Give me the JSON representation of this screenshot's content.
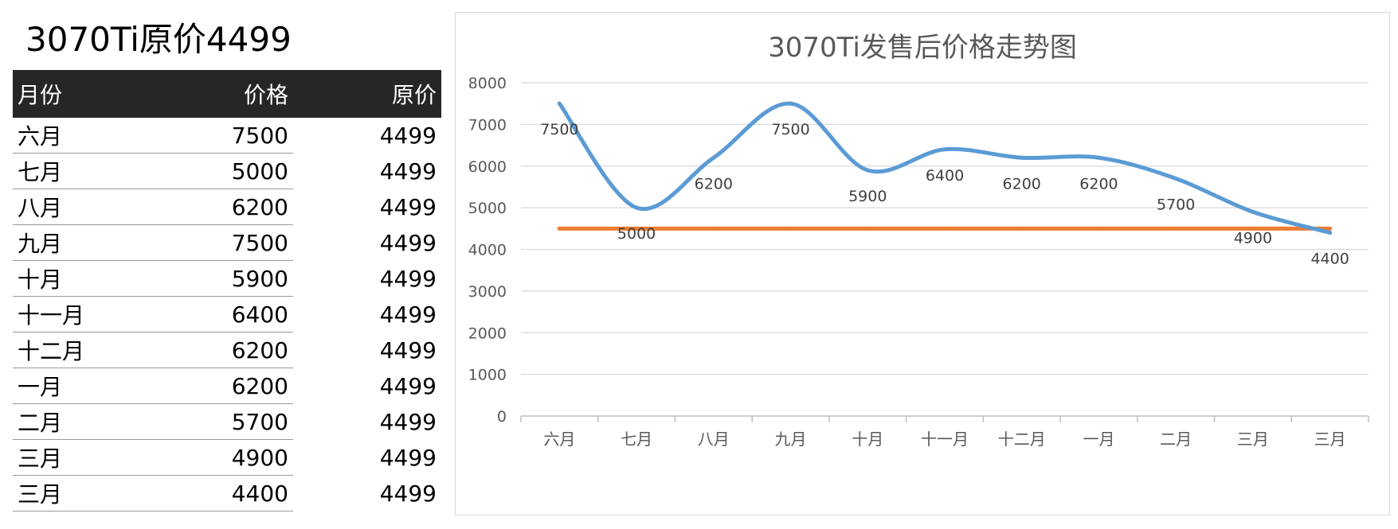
{
  "sheet": {
    "title": "3070Ti原价4499",
    "headers": {
      "month": "月份",
      "price": "价格",
      "original": "原价"
    },
    "rows": [
      {
        "month": "六月",
        "price": "7500",
        "original": "4499"
      },
      {
        "month": "七月",
        "price": "5000",
        "original": "4499"
      },
      {
        "month": "八月",
        "price": "6200",
        "original": "4499"
      },
      {
        "month": "九月",
        "price": "7500",
        "original": "4499"
      },
      {
        "month": "十月",
        "price": "5900",
        "original": "4499"
      },
      {
        "month": "十一月",
        "price": "6400",
        "original": "4499"
      },
      {
        "month": "十二月",
        "price": "6200",
        "original": "4499"
      },
      {
        "month": "一月",
        "price": "6200",
        "original": "4499"
      },
      {
        "month": "二月",
        "price": "5700",
        "original": "4499"
      },
      {
        "month": "三月",
        "price": "4900",
        "original": "4499"
      },
      {
        "month": "三月",
        "price": "4400",
        "original": "4499"
      }
    ]
  },
  "chart_data": {
    "type": "line",
    "title": "3070Ti发售后价格走势图",
    "categories": [
      "六月",
      "七月",
      "八月",
      "九月",
      "十月",
      "十一月",
      "十二月",
      "一月",
      "二月",
      "三月",
      "三月"
    ],
    "series": [
      {
        "values": [
          7500,
          5000,
          6200,
          7500,
          5900,
          6400,
          6200,
          6200,
          5700,
          4900,
          4400
        ],
        "color": "#5b9bd5",
        "smooth": true,
        "data_labels": true
      },
      {
        "values": [
          4499,
          4499,
          4499,
          4499,
          4499,
          4499,
          4499,
          4499,
          4499,
          4499,
          4499
        ],
        "color": "#ed7d31",
        "smooth": false,
        "data_labels": false
      }
    ],
    "ylim": [
      0,
      8000
    ],
    "yticks": [
      0,
      1000,
      2000,
      3000,
      4000,
      5000,
      6000,
      7000,
      8000
    ],
    "grid": true,
    "legend": "none",
    "xlabel": "",
    "ylabel": ""
  }
}
